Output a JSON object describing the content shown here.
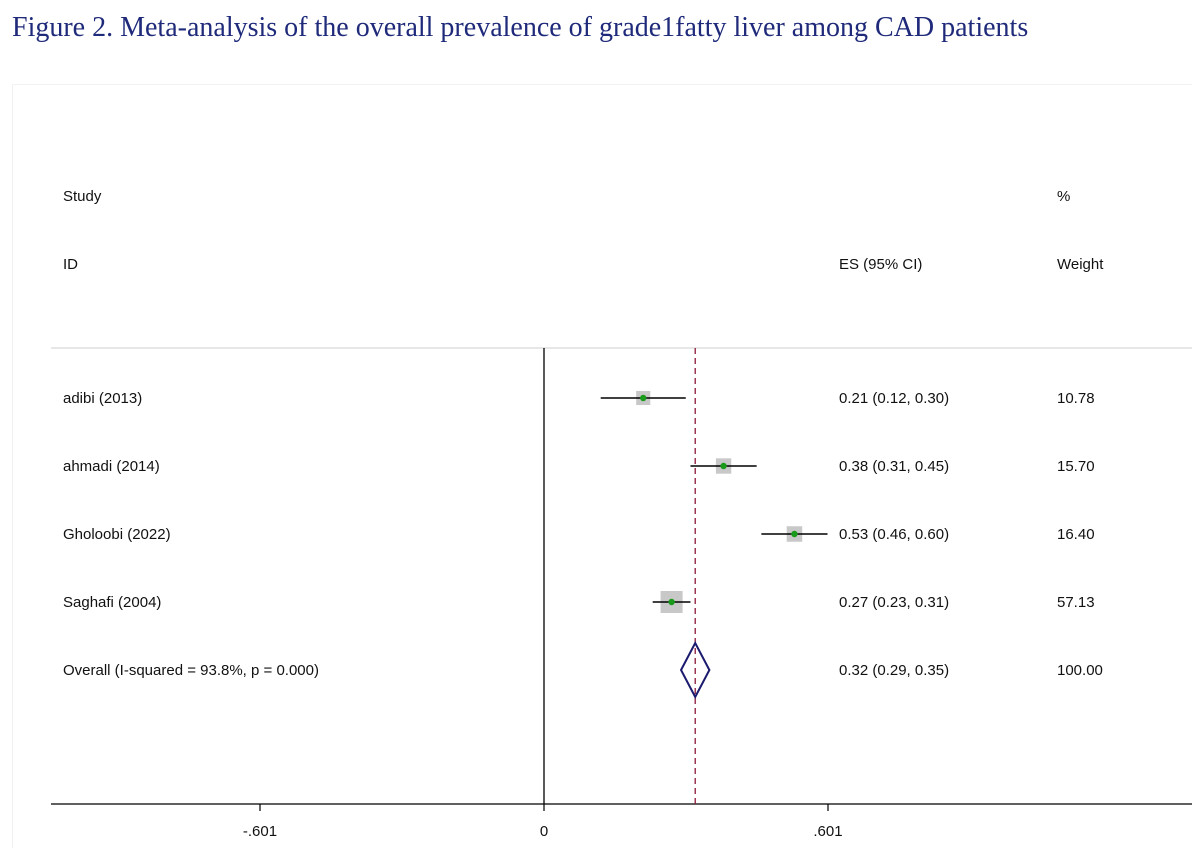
{
  "figure": {
    "title": "Figure 2. Meta-analysis of the overall prevalence of grade1fatty liver among CAD patients"
  },
  "headers": {
    "study_line1": "Study",
    "study_line2": "ID",
    "es": "ES (95% CI)",
    "weight_line1": "%",
    "weight_line2": "Weight"
  },
  "chart_data": {
    "type": "forest",
    "x_ticks": [
      {
        "value": -0.601,
        "label": "-.601"
      },
      {
        "value": 0,
        "label": "0"
      },
      {
        "value": 0.601,
        "label": ".601"
      }
    ],
    "xlim": [
      -1.04,
      1.35
    ],
    "null_line": 0,
    "overall_line": 0.32,
    "studies": [
      {
        "id": "adibi (2013)",
        "es": 0.21,
        "lo": 0.12,
        "hi": 0.3,
        "ci_text": "0.21 (0.12, 0.30)",
        "weight": 10.78,
        "weight_text": "10.78"
      },
      {
        "id": "ahmadi (2014)",
        "es": 0.38,
        "lo": 0.31,
        "hi": 0.45,
        "ci_text": "0.38 (0.31, 0.45)",
        "weight": 15.7,
        "weight_text": "15.70"
      },
      {
        "id": "Gholoobi (2022)",
        "es": 0.53,
        "lo": 0.46,
        "hi": 0.6,
        "ci_text": "0.53 (0.46, 0.60)",
        "weight": 16.4,
        "weight_text": "16.40"
      },
      {
        "id": "Saghafi (2004)",
        "es": 0.27,
        "lo": 0.23,
        "hi": 0.31,
        "ci_text": "0.27 (0.23, 0.31)",
        "weight": 57.13,
        "weight_text": "57.13"
      }
    ],
    "overall": {
      "id": "Overall  (I-squared = 93.8%, p = 0.000)",
      "es": 0.32,
      "lo": 0.29,
      "hi": 0.35,
      "ci_text": "0.32 (0.29, 0.35)",
      "weight_text": "100.00"
    }
  },
  "colors": {
    "title": "#1f2a7a",
    "diamond": "#1a1a6e",
    "point": "#1a9a1a",
    "weight_box": "#c8c8c8",
    "overall_line": "#8b1a3a",
    "axis": "#000000"
  }
}
